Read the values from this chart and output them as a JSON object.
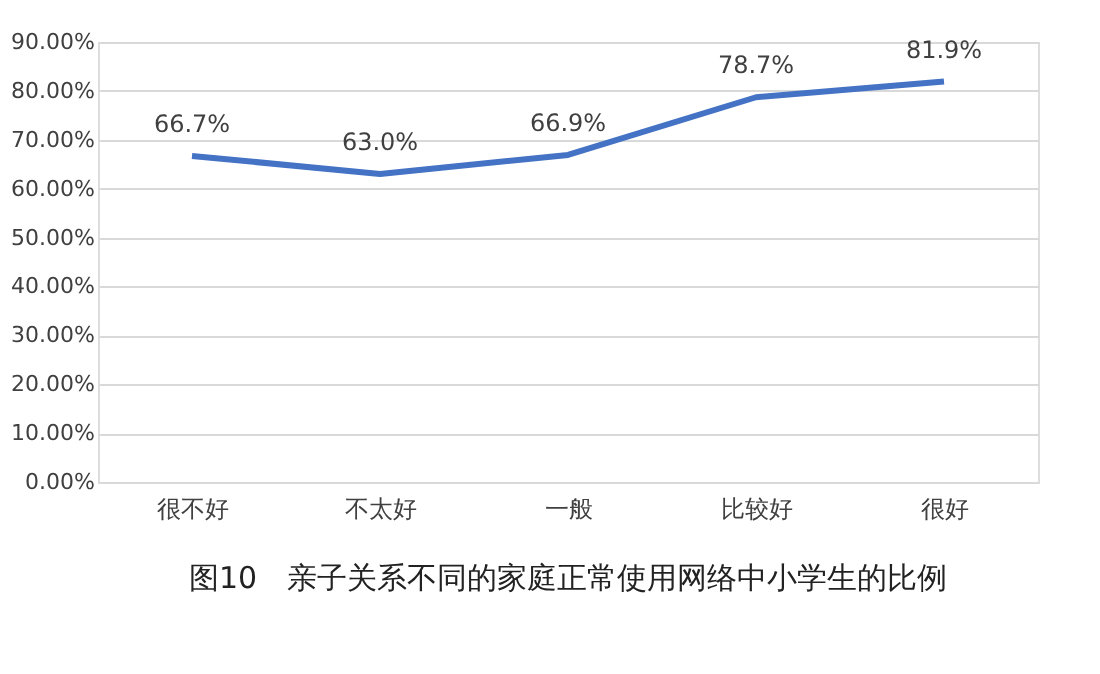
{
  "chart_data": {
    "type": "line",
    "categories": [
      "很不好",
      "不太好",
      "一般",
      "比较好",
      "很好"
    ],
    "series": [
      {
        "color": "#4472c4",
        "values": [
          66.7,
          63.0,
          66.9,
          78.7,
          81.9
        ]
      }
    ],
    "value_labels": [
      "66.7%",
      "63.0%",
      "66.9%",
      "78.7%",
      "81.9%"
    ],
    "ylim": [
      0,
      90
    ],
    "yticks": [
      {
        "value": 0,
        "label": "0.00%"
      },
      {
        "value": 10,
        "label": "10.00%"
      },
      {
        "value": 20,
        "label": "20.00%"
      },
      {
        "value": 30,
        "label": "30.00%"
      },
      {
        "value": 40,
        "label": "40.00%"
      },
      {
        "value": 50,
        "label": "50.00%"
      },
      {
        "value": 60,
        "label": "60.00%"
      },
      {
        "value": 70,
        "label": "70.00%"
      },
      {
        "value": 80,
        "label": "80.00%"
      },
      {
        "value": 90,
        "label": "90.00%"
      }
    ],
    "grid": "y",
    "marker": "none",
    "line_style": "solid",
    "annotations": [
      "图10　亲子关系不同的家庭正常使用网络中小学生的比例"
    ]
  }
}
